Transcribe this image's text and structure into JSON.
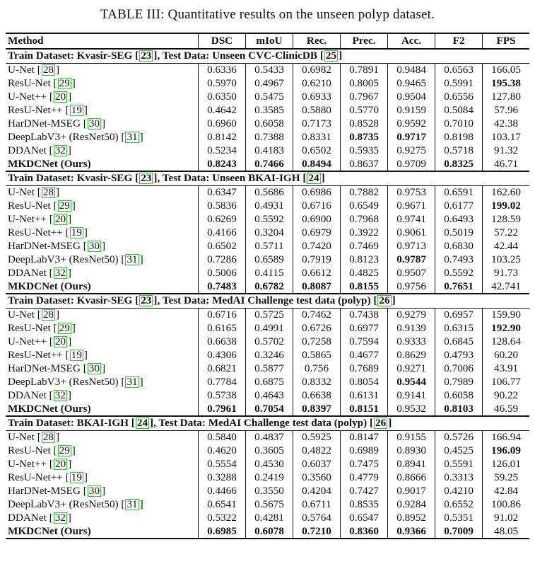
{
  "caption": "TABLE III: Quantitative results on the unseen polyp dataset.",
  "columns": [
    "Method",
    "DSC",
    "mIoU",
    "Rec.",
    "Prec.",
    "Acc.",
    "F2",
    "FPS"
  ],
  "sections": [
    {
      "header": {
        "pre": "Train Dataset: Kvasir-SEG ",
        "ref1": "23",
        "mid": ", Test Data: Unseen CVC-ClinicDB ",
        "ref2": "25",
        "post": ""
      },
      "rows": [
        {
          "name": "U-Net ",
          "ref": "28",
          "suffix": "",
          "vals": [
            "0.6336",
            "0.5433",
            "0.6982",
            "0.7891",
            "0.9484",
            "0.6563",
            "166.05"
          ],
          "bold": []
        },
        {
          "name": "ResU-Net ",
          "ref": "29",
          "suffix": "",
          "vals": [
            "0.5970",
            "0.4967",
            "0.6210",
            "0.8005",
            "0.9465",
            "0.5991",
            "195.38"
          ],
          "bold": [
            6
          ]
        },
        {
          "name": "U-Net++ ",
          "ref": "20",
          "suffix": "",
          "vals": [
            "0.6350",
            "0.5475",
            "0.6933",
            "0.7967",
            "0.9504",
            "0.6556",
            "127.80"
          ],
          "bold": []
        },
        {
          "name": "ResU-Net++ ",
          "ref": "19",
          "suffix": "",
          "vals": [
            "0.4642",
            "0.3585",
            "0.5880",
            "0.5770",
            "0.9159",
            "0.5084",
            "57.96"
          ],
          "bold": []
        },
        {
          "name": "HarDNet-MSEG ",
          "ref": "30",
          "suffix": "",
          "vals": [
            "0.6960",
            "0.6058",
            "0.7173",
            "0.8528",
            "0.9592",
            "0.7010",
            "42.38"
          ],
          "bold": []
        },
        {
          "name": "DeepLabV3+ (ResNet50) ",
          "ref": "31",
          "suffix": "",
          "vals": [
            "0.8142",
            "0.7388",
            "0.8331",
            "0.8735",
            "0.9717",
            "0.8198",
            "103.17"
          ],
          "bold": [
            3,
            4
          ]
        },
        {
          "name": "DDANet ",
          "ref": "32",
          "suffix": "",
          "vals": [
            "0.5234",
            "0.4183",
            "0.6502",
            "0.5935",
            "0.9275",
            "0.5718",
            "91.32"
          ],
          "bold": []
        },
        {
          "name": "MKDCNet (Ours)",
          "ref": "",
          "suffix": "",
          "vals": [
            "0.8243",
            "0.7466",
            "0.8494",
            "0.8637",
            "0.9709",
            "0.8325",
            "46.71"
          ],
          "bold": [
            0,
            1,
            2,
            5
          ],
          "ours": true
        }
      ]
    },
    {
      "header": {
        "pre": "Train Dataset: Kvasir-SEG ",
        "ref1": "23",
        "mid": ", Test Data: Unseen BKAI-IGH ",
        "ref2": "24",
        "post": ""
      },
      "rows": [
        {
          "name": "U-Net ",
          "ref": "28",
          "suffix": "",
          "vals": [
            "0.6347",
            "0.5686",
            "0.6986",
            "0.7882",
            "0.9753",
            "0.6591",
            "162.60"
          ],
          "bold": []
        },
        {
          "name": "ResU-Net ",
          "ref": "29",
          "suffix": "",
          "vals": [
            "0.5836",
            "0.4931",
            "0.6716",
            "0.6549",
            "0.9671",
            "0.6177",
            "199.02"
          ],
          "bold": [
            6
          ]
        },
        {
          "name": "U-Net++ ",
          "ref": "20",
          "suffix": "",
          "vals": [
            "0.6269",
            "0.5592",
            "0.6900",
            "0.7968",
            "0.9741",
            "0.6493",
            "128.59"
          ],
          "bold": []
        },
        {
          "name": "ResU-Net++ ",
          "ref": "19",
          "suffix": "",
          "vals": [
            "0.4166",
            "0.3204",
            "0.6979",
            "0.3922",
            "0.9061",
            "0.5019",
            "57.22"
          ],
          "bold": []
        },
        {
          "name": "HarDNet-MSEG ",
          "ref": "30",
          "suffix": "",
          "vals": [
            "0.6502",
            "0.5711",
            "0.7420",
            "0.7469",
            "0.9713",
            "0.6830",
            "42.44"
          ],
          "bold": []
        },
        {
          "name": "DeepLabV3+ (ResNet50) ",
          "ref": "31",
          "suffix": "",
          "vals": [
            "0.7286",
            "0.6589",
            "0.7919",
            "0.8123",
            "0.9787",
            "0.7493",
            "103.25"
          ],
          "bold": [
            4
          ]
        },
        {
          "name": "DDANet ",
          "ref": "32",
          "suffix": "",
          "vals": [
            "0.5006",
            "0.4115",
            "0.6612",
            "0.4825",
            "0.9507",
            "0.5592",
            "91.73"
          ],
          "bold": []
        },
        {
          "name": "MKDCNet (Ours)",
          "ref": "",
          "suffix": "",
          "vals": [
            "0.7483",
            "0.6782",
            "0.8087",
            "0.8155",
            "0.9756",
            "0.7651",
            "42.741"
          ],
          "bold": [
            0,
            1,
            2,
            3,
            5
          ],
          "ours": true
        }
      ]
    },
    {
      "header": {
        "pre": "Train Dataset: Kvasir-SEG ",
        "ref1": "23",
        "mid": ", Test Data: MedAI Challenge test data (polyp) ",
        "ref2": "26",
        "post": ""
      },
      "rows": [
        {
          "name": "U-Net ",
          "ref": "28",
          "suffix": "",
          "vals": [
            "0.6716",
            "0.5725",
            "0.7462",
            "0.7438",
            "0.9279",
            "0.6957",
            "159.90"
          ],
          "bold": []
        },
        {
          "name": "ResU-Net ",
          "ref": "29",
          "suffix": "",
          "vals": [
            "0.6165",
            "0.4991",
            "0.6726",
            "0.6977",
            "0.9139",
            "0.6315",
            "192.90"
          ],
          "bold": [
            6
          ]
        },
        {
          "name": "U-Net++ ",
          "ref": "20",
          "suffix": "",
          "vals": [
            "0.6638",
            "0.5702",
            "0.7258",
            "0.7594",
            "0.9333",
            "0.6845",
            "128.64"
          ],
          "bold": []
        },
        {
          "name": "ResU-Net++ ",
          "ref": "19",
          "suffix": "",
          "vals": [
            "0.4306",
            "0.3246",
            "0.5865",
            "0.4677",
            "0.8629",
            "0.4793",
            "60.20"
          ],
          "bold": []
        },
        {
          "name": "HarDNet-MSEG ",
          "ref": "30",
          "suffix": "",
          "vals": [
            "0.6821",
            "0.5877",
            "0.756",
            "0.7689",
            "0.9271",
            "0.7006",
            "43.91"
          ],
          "bold": []
        },
        {
          "name": "DeepLabV3+ (ResNet50) ",
          "ref": "31",
          "suffix": "",
          "vals": [
            "0.7784",
            "0.6875",
            "0.8332",
            "0.8054",
            "0.9544",
            "0.7989",
            "106.77"
          ],
          "bold": [
            4
          ]
        },
        {
          "name": "DDANet ",
          "ref": "32",
          "suffix": "",
          "vals": [
            "0.5738",
            "0.4643",
            "0.6638",
            "0.6131",
            "0.9141",
            "0.6058",
            "90.22"
          ],
          "bold": []
        },
        {
          "name": "MKDCNet (Ours)",
          "ref": "",
          "suffix": "",
          "vals": [
            "0.7961",
            "0.7054",
            "0.8397",
            "0.8151",
            "0.9532",
            "0.8103",
            "46.59"
          ],
          "bold": [
            0,
            1,
            2,
            3,
            5
          ],
          "ours": true
        }
      ]
    },
    {
      "header": {
        "pre": "Train Dataset: BKAI-IGH ",
        "ref1": "24",
        "mid": ", Test Data: MedAI Challenge test data (polyp) ",
        "ref2": "26",
        "post": ""
      },
      "rows": [
        {
          "name": "U-Net ",
          "ref": "28",
          "suffix": "",
          "vals": [
            "0.5840",
            "0.4837",
            "0.5925",
            "0.8147",
            "0.9155",
            "0.5726",
            "166.94"
          ],
          "bold": []
        },
        {
          "name": "ResU-Net ",
          "ref": "29",
          "suffix": "",
          "vals": [
            "0.4620",
            "0.3605",
            "0.4822",
            "0.6989",
            "0.8930",
            "0.4525",
            "196.09"
          ],
          "bold": [
            6
          ]
        },
        {
          "name": "U-Net++ ",
          "ref": "20",
          "suffix": "",
          "vals": [
            "0.5554",
            "0.4530",
            "0.6037",
            "0.7475",
            "0.8941",
            "0.5591",
            "126.01"
          ],
          "bold": []
        },
        {
          "name": "ResU-Net++ ",
          "ref": "19",
          "suffix": "",
          "vals": [
            "0.3288",
            "0.2419",
            "0.3560",
            "0.4779",
            "0.8666",
            "0.3313",
            "59.25"
          ],
          "bold": []
        },
        {
          "name": "HarDNet-MSEG ",
          "ref": "30",
          "suffix": "",
          "vals": [
            "0.4466",
            "0.3550",
            "0.4204",
            "0.7427",
            "0.9017",
            "0.4210",
            "42.84"
          ],
          "bold": []
        },
        {
          "name": "DeepLabV3+ (ResNet50) ",
          "ref": "31",
          "suffix": "",
          "vals": [
            "0.6541",
            "0.5675",
            "0.6711",
            "0.8535",
            "0.9284",
            "0.6552",
            "100.86"
          ],
          "bold": []
        },
        {
          "name": "DDANet ",
          "ref": "32",
          "suffix": "",
          "vals": [
            "0.5322",
            "0.4281",
            "0.5764",
            "0.6547",
            "0.8952",
            "0.5351",
            "91.02"
          ],
          "bold": []
        },
        {
          "name": "MKDCNet (Ours)",
          "ref": "",
          "suffix": "",
          "vals": [
            "0.6985",
            "0.6078",
            "0.7210",
            "0.8360",
            "0.9366",
            "0.7009",
            "48.05"
          ],
          "bold": [
            0,
            1,
            2,
            3,
            4,
            5
          ],
          "ours": true
        }
      ]
    }
  ]
}
